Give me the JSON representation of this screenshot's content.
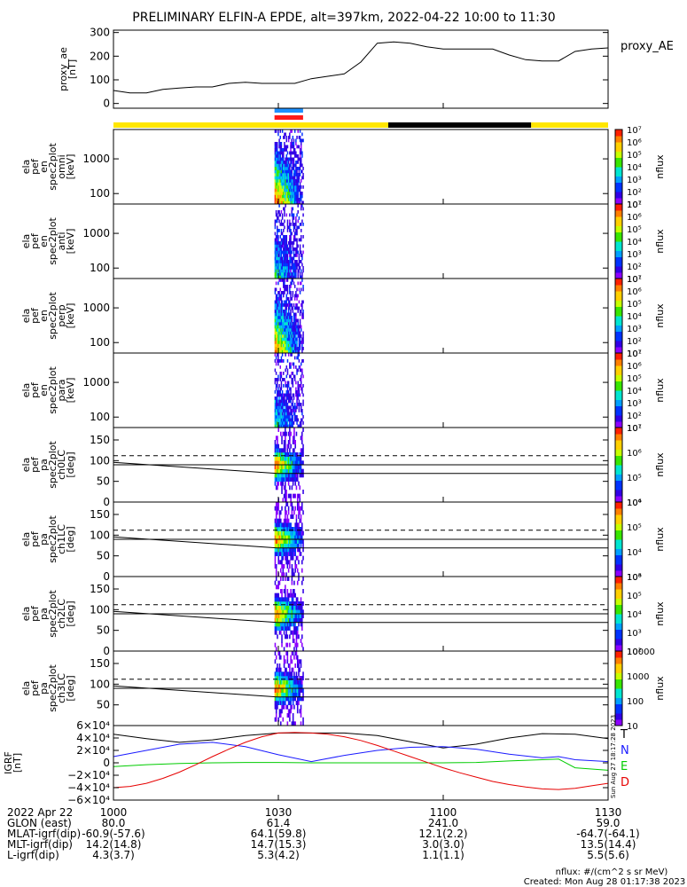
{
  "chart_data": {
    "type": "heatmap",
    "title": "PRELIMINARY ELFIN-A EPDE, alt=397km, 2022-04-22 10:00 to 11:30",
    "time": {
      "start_min": 600,
      "end_min": 690,
      "tick_labels": [
        "1000",
        "1030",
        "1100",
        "1130"
      ],
      "tick_minutes": [
        600,
        630,
        660,
        690
      ]
    },
    "proxy_ae": {
      "ylabel_lines": [
        "proxy_ae",
        "[nT]"
      ],
      "legend": "proxy_AE",
      "ylim": [
        -20,
        310
      ],
      "yticks": [
        0,
        100,
        200,
        300
      ],
      "tick_labels": [
        "0",
        "100",
        "200",
        "300"
      ],
      "x": [
        600,
        603,
        606,
        609,
        612,
        615,
        618,
        621,
        624,
        627,
        630,
        633,
        636,
        639,
        642,
        645,
        648,
        651,
        654,
        657,
        660,
        663,
        666,
        669,
        672,
        675,
        678,
        681,
        684,
        687,
        690
      ],
      "values": [
        55,
        45,
        45,
        60,
        65,
        70,
        70,
        85,
        90,
        85,
        85,
        85,
        105,
        115,
        125,
        175,
        255,
        260,
        255,
        240,
        230,
        230,
        230,
        230,
        205,
        185,
        180,
        180,
        220,
        230,
        235
      ]
    },
    "science_zone_bars": {
      "colors": {
        "yellow": "#ffe600",
        "black": "#000000",
        "blue": "#1e90ff",
        "red": "#ff1a1a"
      },
      "status_segments": [
        {
          "start_min": 600,
          "end_min": 650,
          "color": "yellow"
        },
        {
          "start_min": 650,
          "end_min": 676,
          "color": "black"
        },
        {
          "start_min": 676,
          "end_min": 690,
          "color": "yellow"
        }
      ],
      "collection_segments": [
        {
          "start_min": 629.3,
          "end_min": 634.5,
          "color": "blue"
        },
        {
          "start_min": 629.3,
          "end_min": 634.5,
          "color": "red"
        }
      ]
    },
    "energy_panels": [
      {
        "ylabel_lines": [
          "ela",
          "pef",
          "en",
          "spec2plot",
          "omni",
          "[keV]"
        ],
        "ylim_log": [
          50,
          7000
        ],
        "yticks": [
          100,
          1000
        ],
        "tick_labels": [
          "100",
          "1000"
        ],
        "colorbar": {
          "label": "nflux",
          "tick_labels": [
            "10¹",
            "10²",
            "10³",
            "10⁴",
            "10⁵",
            "10⁶",
            "10⁷"
          ]
        }
      },
      {
        "ylabel_lines": [
          "ela",
          "pef",
          "en",
          "spec2plot",
          "anti",
          "[keV]"
        ],
        "ylim_log": [
          50,
          7000
        ],
        "yticks": [
          100,
          1000
        ],
        "tick_labels": [
          "100",
          "1000"
        ],
        "colorbar": {
          "label": "nflux",
          "tick_labels": [
            "10¹",
            "10²",
            "10³",
            "10⁴",
            "10⁵",
            "10⁶",
            "10⁷"
          ]
        }
      },
      {
        "ylabel_lines": [
          "ela",
          "pef",
          "en",
          "spec2plot",
          "perp",
          "[keV]"
        ],
        "ylim_log": [
          50,
          7000
        ],
        "yticks": [
          100,
          1000
        ],
        "tick_labels": [
          "100",
          "1000"
        ],
        "colorbar": {
          "label": "nflux",
          "tick_labels": [
            "10¹",
            "10²",
            "10³",
            "10⁴",
            "10⁵",
            "10⁶",
            "10⁷"
          ]
        }
      },
      {
        "ylabel_lines": [
          "ela",
          "pef",
          "en",
          "spec2plot",
          "para",
          "[keV]"
        ],
        "ylim_log": [
          50,
          7000
        ],
        "yticks": [
          100,
          1000
        ],
        "tick_labels": [
          "100",
          "1000"
        ],
        "colorbar": {
          "label": "nflux",
          "tick_labels": [
            "10¹",
            "10²",
            "10³",
            "10⁴",
            "10⁵",
            "10⁶",
            "10⁷"
          ]
        }
      }
    ],
    "pitch_angle_panels": [
      {
        "ylabel_lines": [
          "ela",
          "pef",
          "pa",
          "spec2plot",
          "ch0LC",
          "[deg]"
        ],
        "ylim": [
          0,
          180
        ],
        "yticks": [
          0,
          50,
          100,
          150
        ],
        "tick_labels": [
          "0",
          "50",
          "100",
          "150"
        ],
        "colorbar": {
          "label": "nflux",
          "tick_labels": [
            "10⁴",
            "10⁵",
            "10⁶",
            "10⁷"
          ]
        }
      },
      {
        "ylabel_lines": [
          "ela",
          "pef",
          "pa",
          "spec2plot",
          "ch1LC",
          "[deg]"
        ],
        "ylim": [
          0,
          180
        ],
        "yticks": [
          0,
          50,
          100,
          150
        ],
        "tick_labels": [
          "0",
          "50",
          "100",
          "150"
        ],
        "colorbar": {
          "label": "nflux",
          "tick_labels": [
            "10³",
            "10⁴",
            "10⁵",
            "10⁶"
          ]
        }
      },
      {
        "ylabel_lines": [
          "ela",
          "pef",
          "pa",
          "spec2plot",
          "ch2LC",
          "[deg]"
        ],
        "ylim": [
          0,
          180
        ],
        "yticks": [
          0,
          50,
          100,
          150
        ],
        "tick_labels": [
          "0",
          "50",
          "100",
          "150"
        ],
        "colorbar": {
          "label": "nflux",
          "tick_labels": [
            "10²",
            "10³",
            "10⁴",
            "10⁵",
            "10⁶"
          ]
        }
      },
      {
        "ylabel_lines": [
          "ela",
          "pef",
          "pa",
          "spec2plot",
          "ch3LC",
          "[deg]"
        ],
        "ylim": [
          0,
          180
        ],
        "yticks": [
          50,
          100,
          150
        ],
        "tick_labels": [
          "50",
          "100",
          "150"
        ],
        "colorbar": {
          "label": "nflux",
          "tick_labels": [
            "10",
            "100",
            "1000",
            "10000"
          ]
        }
      }
    ],
    "loss_cone_lines": {
      "dashed_deg": 112,
      "solid_flat_deg": 90,
      "solid_slanted_deg": [
        96,
        69
      ]
    },
    "igrf_panel": {
      "ylabel_lines": [
        "IGRF",
        "[nT]"
      ],
      "ylim": [
        -60000,
        60000
      ],
      "yticks": [
        -60000,
        -40000,
        -20000,
        0,
        20000,
        40000,
        60000
      ],
      "tick_labels": [
        "−6×10⁴",
        "−4×10⁴",
        "−2×10⁴",
        "0",
        "2×10⁴",
        "4×10⁴",
        "6×10⁴"
      ],
      "series": [
        {
          "name": "T",
          "color": "#000000",
          "x": [
            600,
            606,
            612,
            618,
            624,
            630,
            636,
            642,
            648,
            654,
            660,
            666,
            672,
            678,
            684,
            690
          ],
          "values": [
            46000,
            39000,
            33000,
            37000,
            44000,
            48000,
            48000,
            48000,
            44000,
            34000,
            24000,
            30000,
            40000,
            47000,
            46000,
            39000
          ]
        },
        {
          "name": "N",
          "color": "#1a1aff",
          "x": [
            600,
            606,
            612,
            618,
            624,
            630,
            636,
            642,
            648,
            654,
            660,
            666,
            672,
            678,
            681,
            684,
            690
          ],
          "values": [
            10000,
            20000,
            30000,
            33000,
            26000,
            13000,
            2000,
            12000,
            20000,
            25000,
            26000,
            22000,
            14000,
            8000,
            10000,
            5000,
            2000
          ]
        },
        {
          "name": "E",
          "color": "#00cc00",
          "x": [
            600,
            606,
            612,
            618,
            624,
            630,
            636,
            642,
            648,
            654,
            660,
            666,
            672,
            678,
            681,
            684,
            690
          ],
          "values": [
            -6000,
            -3000,
            -1000,
            0,
            500,
            500,
            0,
            0,
            0,
            0,
            0,
            500,
            3000,
            5000,
            6000,
            -8000,
            -12000
          ]
        },
        {
          "name": "D",
          "color": "#e60000",
          "x": [
            600,
            603,
            606,
            609,
            612,
            615,
            618,
            621,
            624,
            627,
            630,
            633,
            636,
            639,
            642,
            645,
            648,
            651,
            654,
            657,
            660,
            663,
            666,
            669,
            672,
            675,
            678,
            681,
            684,
            687,
            690
          ],
          "values": [
            -40000,
            -38000,
            -33000,
            -25000,
            -15000,
            -3000,
            10000,
            22000,
            33000,
            42000,
            48000,
            49000,
            48000,
            46000,
            42000,
            36000,
            28000,
            19000,
            10000,
            1000,
            -8000,
            -16000,
            -23000,
            -30000,
            -35000,
            -39000,
            -42000,
            -43000,
            -41000,
            -37000,
            -33000
          ]
        }
      ],
      "side_stamp": "Sun Aug 27 18:17:28 2023"
    },
    "colorscale": [
      "#f2f2f2",
      "#8c00ff",
      "#3200e6",
      "#0033ff",
      "#00a0ff",
      "#00e6d2",
      "#38e600",
      "#c8ff00",
      "#ffd000",
      "#ff8000",
      "#ff2000"
    ]
  },
  "ephemeris": {
    "rows": [
      {
        "label": "2022 Apr 22",
        "values": [
          "1000",
          "1030",
          "1100",
          "1130"
        ]
      },
      {
        "label": "GLON (east)",
        "values": [
          "80.0",
          "61.4",
          "241.0",
          "59.0"
        ]
      },
      {
        "label": "MLAT-igrf(dip)",
        "values": [
          "-60.9(-57.6)",
          "64.1(59.8)",
          "12.1(2.2)",
          "-64.7(-64.1)"
        ]
      },
      {
        "label": "MLT-igrf(dip)",
        "values": [
          "14.2(14.8)",
          "14.7(15.3)",
          "3.0(3.0)",
          "13.5(14.4)"
        ]
      },
      {
        "label": "L-igrf(dip)",
        "values": [
          "4.3(3.7)",
          "5.3(4.2)",
          "1.1(1.1)",
          "5.5(5.6)"
        ]
      }
    ]
  },
  "footer": {
    "units": "nflux: #/(cm^2 s sr MeV)",
    "created": "Created: Mon Aug 28 01:17:38 2023"
  }
}
